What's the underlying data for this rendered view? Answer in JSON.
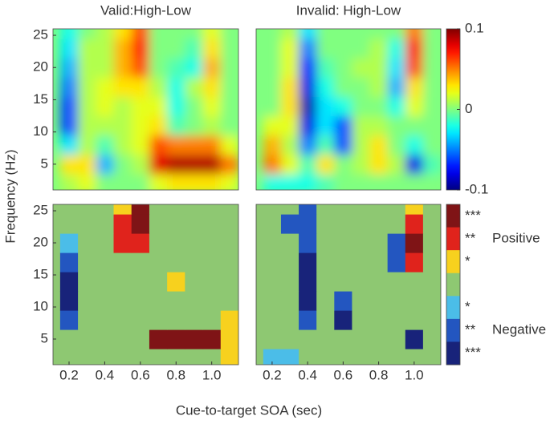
{
  "figure": {
    "xlabel": "Cue-to-target SOA (sec)",
    "ylabel": "Frequency (Hz)"
  },
  "chart_data": [
    {
      "type": "heatmap",
      "title": "Valid:High-Low",
      "x": [
        0.2,
        0.3,
        0.4,
        0.5,
        0.6,
        0.7,
        0.8,
        0.9,
        1.0,
        1.1
      ],
      "y": [
        2,
        5,
        8,
        11,
        14,
        17,
        20,
        23,
        26
      ],
      "z": [
        [
          0.01,
          0.02,
          0,
          0,
          0,
          0.02,
          0.03,
          0.03,
          0.03,
          0.02
        ],
        [
          0.03,
          0.03,
          -0.04,
          0,
          0.01,
          0.08,
          0.09,
          0.09,
          0.09,
          0.05
        ],
        [
          -0.03,
          0.01,
          -0.01,
          0.01,
          0.02,
          0.06,
          0.05,
          0.05,
          0.05,
          0.02
        ],
        [
          -0.06,
          0.01,
          0.01,
          0.01,
          0.02,
          0.03,
          -0.01,
          0,
          0.01,
          0
        ],
        [
          -0.06,
          0.01,
          0.02,
          0.01,
          0.02,
          0.02,
          -0.02,
          0,
          0.02,
          0
        ],
        [
          -0.05,
          0.01,
          0.02,
          0.03,
          0.03,
          0.01,
          -0.02,
          0.01,
          0.03,
          0
        ],
        [
          -0.04,
          0.01,
          0.01,
          0.04,
          0.06,
          0,
          -0.01,
          -0.02,
          0.04,
          0
        ],
        [
          -0.03,
          0.01,
          0.01,
          0.04,
          0.07,
          0,
          0,
          -0.01,
          0.03,
          0
        ],
        [
          -0.02,
          0,
          0.01,
          0.03,
          0.06,
          0,
          0,
          0,
          0.02,
          0
        ]
      ],
      "xlim": [
        0.11,
        1.15
      ],
      "ylim": [
        1,
        26
      ],
      "yticks": [
        5,
        10,
        15,
        20,
        25
      ],
      "smooth": true
    },
    {
      "type": "heatmap",
      "title": "Invalid: High-Low",
      "x": [
        0.2,
        0.3,
        0.4,
        0.5,
        0.6,
        0.7,
        0.8,
        0.9,
        1.0,
        1.1
      ],
      "y": [
        2,
        5,
        8,
        11,
        14,
        17,
        20,
        23,
        26
      ],
      "z": [
        [
          -0.02,
          -0.02,
          -0.02,
          -0.01,
          0,
          0,
          0,
          0,
          0,
          0
        ],
        [
          0.05,
          0.02,
          -0.01,
          0.03,
          0,
          0.01,
          0.03,
          0.01,
          -0.08,
          -0.01
        ],
        [
          0.04,
          0.01,
          -0.05,
          -0.01,
          -0.06,
          0.01,
          0.03,
          0,
          -0.02,
          0
        ],
        [
          0.02,
          0.02,
          -0.08,
          -0.03,
          -0.06,
          0.01,
          0.01,
          0,
          0,
          0
        ],
        [
          0,
          0.03,
          -0.09,
          -0.03,
          -0.02,
          0,
          0,
          -0.02,
          0.02,
          0
        ],
        [
          0,
          0.03,
          -0.08,
          -0.02,
          0,
          0,
          0.01,
          -0.04,
          0.03,
          0
        ],
        [
          0,
          0.02,
          -0.07,
          -0.01,
          0,
          0.01,
          0.01,
          -0.03,
          0.06,
          0
        ],
        [
          0,
          0.02,
          -0.05,
          0,
          0,
          0,
          0.01,
          -0.02,
          0.07,
          0
        ],
        [
          0,
          0.01,
          -0.03,
          0,
          0,
          0,
          0,
          0,
          0.05,
          0
        ]
      ],
      "xlim": [
        0.11,
        1.15
      ],
      "ylim": [
        1,
        26
      ],
      "smooth": true,
      "colorbar": {
        "colormap": "jet",
        "clim": [
          -0.1,
          0.1
        ],
        "ticks": [
          0.1,
          0,
          -0.1
        ]
      }
    },
    {
      "type": "heatmap",
      "x": [
        0.2,
        0.3,
        0.4,
        0.5,
        0.6,
        0.7,
        0.8,
        0.9,
        1.0,
        1.1
      ],
      "y": [
        2,
        5,
        8,
        11,
        14,
        17,
        20,
        23,
        26
      ],
      "z": [
        [
          0,
          0,
          0,
          0,
          0,
          0,
          0,
          0,
          0,
          1
        ],
        [
          0,
          0,
          0,
          0,
          0,
          3,
          3,
          3,
          3,
          1
        ],
        [
          -2,
          0,
          0,
          0,
          0,
          0,
          0,
          0,
          0,
          1
        ],
        [
          -3,
          0,
          0,
          0,
          0,
          0,
          0,
          0,
          0,
          0
        ],
        [
          -3,
          0,
          0,
          0,
          0,
          0,
          1,
          0,
          0,
          0
        ],
        [
          -2,
          0,
          0,
          0,
          0,
          0,
          0,
          0,
          0,
          0
        ],
        [
          -1,
          0,
          0,
          2,
          2,
          0,
          0,
          0,
          0,
          0
        ],
        [
          0,
          0,
          0,
          2,
          3,
          0,
          0,
          0,
          0,
          0
        ],
        [
          0,
          0,
          0,
          1,
          3,
          0,
          0,
          0,
          0,
          0
        ]
      ],
      "xlim": [
        0.11,
        1.15
      ],
      "ylim": [
        1,
        26
      ],
      "yticks": [
        5,
        10,
        15,
        20,
        25
      ],
      "xticks": [
        0.2,
        0.4,
        0.6,
        0.8,
        {
          "value": 1,
          "label": "1.0"
        }
      ]
    },
    {
      "type": "heatmap",
      "x": [
        0.2,
        0.3,
        0.4,
        0.5,
        0.6,
        0.7,
        0.8,
        0.9,
        1.0,
        1.1
      ],
      "y": [
        2,
        5,
        8,
        11,
        14,
        17,
        20,
        23,
        26
      ],
      "z": [
        [
          -1,
          -1,
          0,
          0,
          0,
          0,
          0,
          0,
          0,
          0
        ],
        [
          0,
          0,
          0,
          0,
          0,
          0,
          0,
          0,
          -3,
          0
        ],
        [
          0,
          0,
          -2,
          0,
          -3,
          0,
          0,
          0,
          0,
          0
        ],
        [
          0,
          0,
          -3,
          0,
          -2,
          0,
          0,
          0,
          0,
          0
        ],
        [
          0,
          0,
          -3,
          0,
          0,
          0,
          0,
          0,
          0,
          0
        ],
        [
          0,
          0,
          -3,
          0,
          0,
          0,
          0,
          -2,
          2,
          0
        ],
        [
          0,
          0,
          -2,
          0,
          0,
          0,
          0,
          -2,
          3,
          0
        ],
        [
          0,
          -2,
          -2,
          0,
          0,
          0,
          0,
          0,
          2,
          0
        ],
        [
          0,
          0,
          -2,
          0,
          0,
          0,
          0,
          0,
          1,
          0
        ]
      ],
      "xlim": [
        0.11,
        1.15
      ],
      "ylim": [
        1,
        26
      ],
      "xticks": [
        0.2,
        0.4,
        0.6,
        0.8,
        {
          "value": 1,
          "label": "1.0"
        }
      ],
      "colorbar": {
        "levels": [
          {
            "value": 3,
            "color": "#7f1416",
            "label": "***"
          },
          {
            "value": 2,
            "color": "#e0231c",
            "label": "**"
          },
          {
            "value": 1,
            "color": "#f7d11e",
            "label": "*"
          },
          {
            "value": 0,
            "color": "#8ec872"
          },
          {
            "value": -1,
            "color": "#4bbde8",
            "label": "*"
          },
          {
            "value": -2,
            "color": "#2356c0",
            "label": "**"
          },
          {
            "value": -3,
            "color": "#18237a",
            "label": "***"
          }
        ],
        "positive": "Positive",
        "negative": "Negative"
      }
    }
  ]
}
